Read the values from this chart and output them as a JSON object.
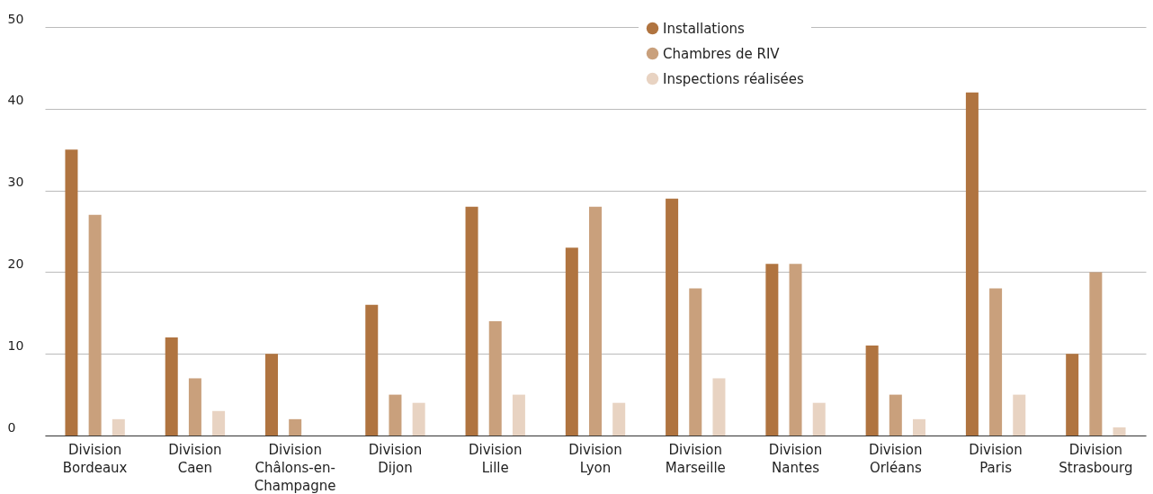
{
  "chart_data": {
    "type": "bar",
    "categories": [
      "Division Bordeaux",
      "Division Caen",
      "Division Châlons-en-Champagne",
      "Division Dijon",
      "Division Lille",
      "Division Lyon",
      "Division Marseille",
      "Division Nantes",
      "Division Orléans",
      "Division Paris",
      "Division Strasbourg"
    ],
    "series": [
      {
        "name": "Installations",
        "color": "#b07440",
        "values": [
          35,
          12,
          10,
          16,
          28,
          23,
          29,
          21,
          11,
          42,
          10
        ]
      },
      {
        "name": "Chambres de RIV",
        "color": "#c9a07c",
        "values": [
          27,
          7,
          2,
          5,
          14,
          28,
          18,
          21,
          5,
          18,
          20
        ]
      },
      {
        "name": "Inspections réalisées",
        "color": "#e8d3c2",
        "values": [
          2,
          3,
          0,
          4,
          5,
          4,
          7,
          4,
          2,
          5,
          1
        ]
      }
    ],
    "ylim": [
      0,
      50
    ],
    "yticks": [
      0,
      10,
      20,
      30,
      40,
      50
    ],
    "grid": "y",
    "legend": "top",
    "marker": "circle"
  }
}
